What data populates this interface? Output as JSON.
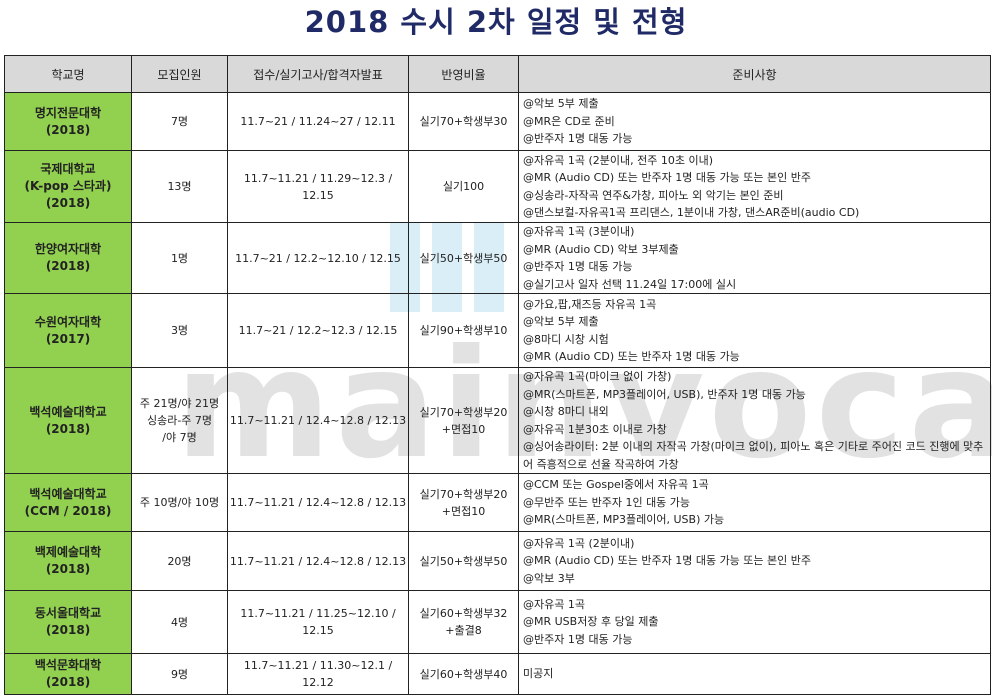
{
  "title": "2018 수시 2차 일정 및 전형",
  "watermark": "mainvocal",
  "columns": [
    "학교명",
    "모집인원",
    "접수/실기고사/합격자발표",
    "반영비율",
    "준비사항"
  ],
  "rows": [
    {
      "school": [
        "명지전문대학",
        "(2018)"
      ],
      "quota": [
        "7명"
      ],
      "schedule": "11.7~21 / 11.24~27 / 12.11",
      "ratio": [
        "실기70+학생부30"
      ],
      "prep": [
        "@악보 5부 제출",
        "@MR은 CD로 준비",
        "@반주자 1명 대동 가능"
      ]
    },
    {
      "school": [
        "국제대학교",
        "(K-pop 스타과)",
        "(2018)"
      ],
      "quota": [
        "13명"
      ],
      "schedule": "11.7~11.21 / 11.29~12.3 / 12.15",
      "ratio": [
        "실기100"
      ],
      "prep": [
        "@자유곡 1곡 (2분이내, 전주 10초 이내)",
        "@MR (Audio CD) 또는 반주자 1명 대동 가능 또는 본인 반주",
        "@싱송라-자작곡 연주&가창, 피아노 외 악기는 본인 준비",
        "@댄스보컬-자유곡1곡 프리댄스, 1분이내 가창, 댄스AR준비(audio CD)"
      ]
    },
    {
      "school": [
        "한양여자대학",
        "(2018)"
      ],
      "quota": [
        "1명"
      ],
      "schedule": "11.7~21 / 12.2~12.10 / 12.15",
      "ratio": [
        "실기50+학생부50"
      ],
      "prep": [
        "@자유곡 1곡 (3분이내)",
        "@MR (Audio CD) 악보 3부제출",
        "@반주자 1명 대동 가능",
        "@실기고사 일자 선택 11.24일 17:00에 실시"
      ]
    },
    {
      "school": [
        "수원여자대학",
        "(2017)"
      ],
      "quota": [
        "3명"
      ],
      "schedule": "11.7~21 / 12.2~12.3 / 12.15",
      "ratio": [
        "실기90+학생부10"
      ],
      "prep": [
        "@가요,팝,재즈등 자유곡 1곡",
        "@악보 5부 제출",
        "@8마디 시창 시험",
        "@MR (Audio CD) 또는 반주자 1명 대동 가능"
      ]
    },
    {
      "school": [
        "백석예술대학교",
        "(2018)"
      ],
      "quota": [
        "주 21명/야 21명",
        "싱송라-주 7명",
        "/야 7명"
      ],
      "schedule": "11.7~11.21 / 12.4~12.8 / 12.13",
      "ratio": [
        "실기70+학생부20",
        "+면접10"
      ],
      "prep": [
        "@자유곡 1곡(마이크 없이 가창)",
        "@MR(스마트폰, MP3플레이어, USB), 반주자 1명 대동 가능",
        "@시창 8마디 내외",
        "@자유곡 1분30초 이내로 가창",
        "@싱어송라이터: 2분 이내의 자작곡 가창(마이크 없이), 피아노 혹은 기타로 주어진 코드 진행에 맞추어 즉흥적으로 선율 작곡하여 가창"
      ]
    },
    {
      "school": [
        "백석예술대학교",
        "(CCM / 2018)"
      ],
      "quota": [
        "주 10명/야 10명"
      ],
      "schedule": "11.7~11.21 / 12.4~12.8 / 12.13",
      "ratio": [
        "실기70+학생부20",
        "+면접10"
      ],
      "prep": [
        "@CCM 또는 Gospel중에서 자유곡 1곡",
        "@무반주 또는 반주자 1인 대동 가능",
        "@MR(스마트폰, MP3플레이어, USB) 가능"
      ]
    },
    {
      "school": [
        "백제예술대학",
        "(2018)"
      ],
      "quota": [
        "20명"
      ],
      "schedule": "11.7~11.21 / 12.4~12.8 / 12.13",
      "ratio": [
        "실기50+학생부50"
      ],
      "prep": [
        "@자유곡 1곡 (2분이내)",
        "@MR (Audio CD) 또는 반주자 1명 대동 가능 또는 본인 반주",
        "@악보 3부"
      ]
    },
    {
      "school": [
        "동서울대학교",
        "(2018)"
      ],
      "quota": [
        "4명"
      ],
      "schedule": "11.7~11.21 / 11.25~12.10 / 12.15",
      "ratio": [
        "실기60+학생부32",
        "+출결8"
      ],
      "prep": [
        "@자유곡 1곡",
        "@MR USB저장 후 당일 제출",
        "@반주자 1명 대동 가능"
      ]
    },
    {
      "school": [
        "백석문화대학",
        "(2018)"
      ],
      "quota": [
        "9명"
      ],
      "schedule": "11.7~11.21 / 11.30~12.1 / 12.12",
      "ratio": [
        "실기60+학생부40"
      ],
      "prep": [
        "미공지"
      ]
    }
  ]
}
